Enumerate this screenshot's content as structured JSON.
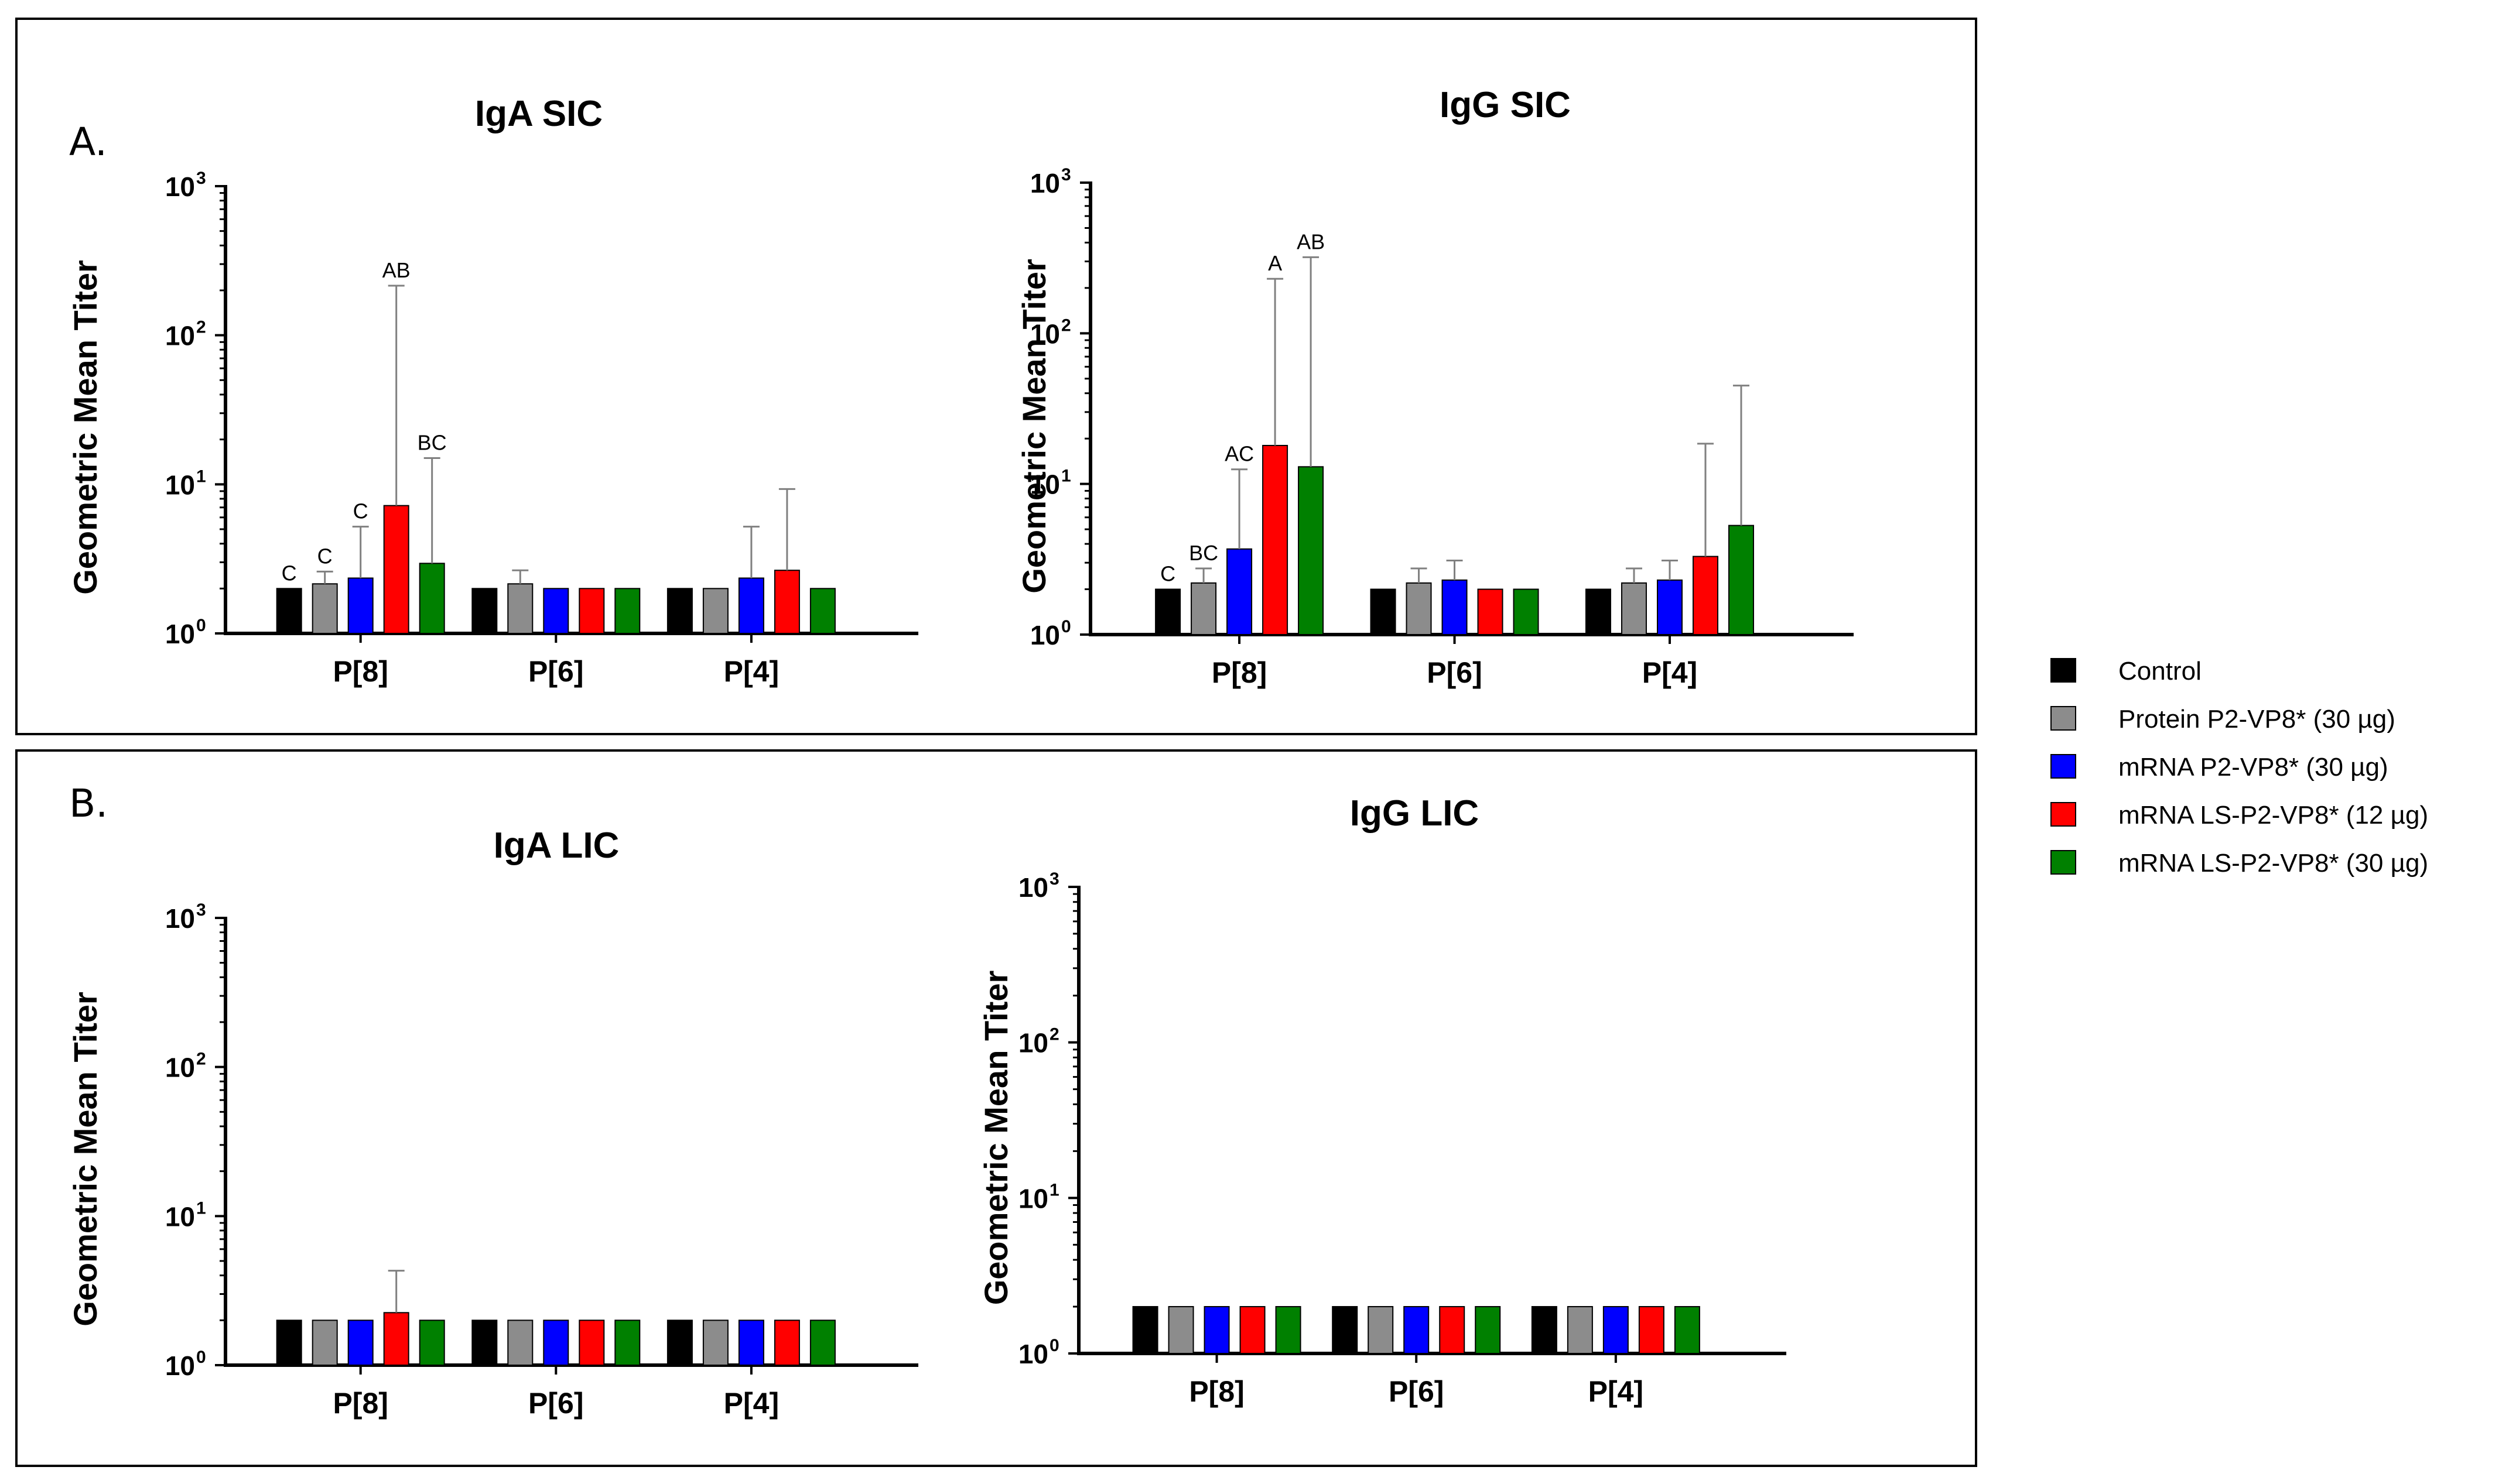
{
  "figure": {
    "panel_letters": [
      "A.",
      "B."
    ],
    "legend": [
      {
        "label": "Control",
        "color": "#000000"
      },
      {
        "label": "Protein P2-VP8* (30 µg)",
        "color": "#8c8c8c"
      },
      {
        "label": "mRNA P2-VP8* (30 µg)",
        "color": "#0000ff"
      },
      {
        "label": "mRNA LS-P2-VP8* (12 µg)",
        "color": "#ff0000"
      },
      {
        "label": "mRNA LS-P2-VP8* (30 µg)",
        "color": "#008000"
      }
    ]
  },
  "chart_data": [
    {
      "type": "bar",
      "title": "IgA SIC",
      "panel": "A.",
      "xlabel": "",
      "ylabel": "Geometric Mean Titer",
      "yscale": "log",
      "ylim": [
        1,
        1000
      ],
      "yticks": [
        {
          "base": "10",
          "exp": "0"
        },
        {
          "base": "10",
          "exp": "1"
        },
        {
          "base": "10",
          "exp": "2"
        },
        {
          "base": "10",
          "exp": "3"
        }
      ],
      "categories": [
        "P[8]",
        "P[6]",
        "P[4]"
      ],
      "series": [
        {
          "name": "Control",
          "values": [
            2.0,
            2.0,
            2.0
          ],
          "error_upper": [
            null,
            null,
            null
          ],
          "annotations": [
            "C",
            "",
            ""
          ]
        },
        {
          "name": "Protein P2-VP8* (30 µg)",
          "values": [
            2.15,
            2.15,
            2.0
          ],
          "error_upper": [
            2.6,
            2.65,
            null
          ],
          "annotations": [
            "C",
            "",
            ""
          ]
        },
        {
          "name": "mRNA P2-VP8* (30 µg)",
          "values": [
            2.35,
            2.0,
            2.35
          ],
          "error_upper": [
            5.2,
            null,
            5.2
          ],
          "annotations": [
            "C",
            "",
            ""
          ]
        },
        {
          "name": "mRNA LS-P2-VP8* (12 µg)",
          "values": [
            7.2,
            2.0,
            2.65
          ],
          "error_upper": [
            215,
            null,
            9.3
          ],
          "annotations": [
            "AB",
            "",
            ""
          ]
        },
        {
          "name": "mRNA LS-P2-VP8* (30 µg)",
          "values": [
            2.95,
            2.0,
            2.0
          ],
          "error_upper": [
            15,
            null,
            null
          ],
          "annotations": [
            "BC",
            "",
            ""
          ]
        }
      ]
    },
    {
      "type": "bar",
      "title": "IgG SIC",
      "panel": "A.",
      "xlabel": "",
      "ylabel": "Geometric Mean Titer",
      "yscale": "log",
      "ylim": [
        1,
        1000
      ],
      "yticks": [
        {
          "base": "10",
          "exp": "0"
        },
        {
          "base": "10",
          "exp": "1"
        },
        {
          "base": "10",
          "exp": "2"
        },
        {
          "base": "10",
          "exp": "3"
        }
      ],
      "categories": [
        "P[8]",
        "P[6]",
        "P[4]"
      ],
      "series": [
        {
          "name": "Control",
          "values": [
            2.0,
            2.0,
            2.0
          ],
          "error_upper": [
            null,
            null,
            null
          ],
          "annotations": [
            "C",
            "",
            ""
          ]
        },
        {
          "name": "Protein P2-VP8* (30 µg)",
          "values": [
            2.2,
            2.2,
            2.2
          ],
          "error_upper": [
            2.75,
            2.75,
            2.75
          ],
          "annotations": [
            "BC",
            "",
            ""
          ]
        },
        {
          "name": "mRNA P2-VP8* (30 µg)",
          "values": [
            3.7,
            2.3,
            2.3
          ],
          "error_upper": [
            12.5,
            3.1,
            3.1
          ],
          "annotations": [
            "AC",
            "",
            ""
          ]
        },
        {
          "name": "mRNA LS-P2-VP8* (12 µg)",
          "values": [
            18,
            2.0,
            3.3
          ],
          "error_upper": [
            230,
            null,
            18.5
          ],
          "annotations": [
            "A",
            "",
            ""
          ]
        },
        {
          "name": "mRNA LS-P2-VP8* (30 µg)",
          "values": [
            13,
            2.0,
            5.3
          ],
          "error_upper": [
            320,
            null,
            45
          ],
          "annotations": [
            "AB",
            "",
            ""
          ]
        }
      ]
    },
    {
      "type": "bar",
      "title": "IgA LIC",
      "panel": "B.",
      "xlabel": "",
      "ylabel": "Geometric Mean Titer",
      "yscale": "log",
      "ylim": [
        1,
        1000
      ],
      "yticks": [
        {
          "base": "10",
          "exp": "0"
        },
        {
          "base": "10",
          "exp": "1"
        },
        {
          "base": "10",
          "exp": "2"
        },
        {
          "base": "10",
          "exp": "3"
        }
      ],
      "categories": [
        "P[8]",
        "P[6]",
        "P[4]"
      ],
      "series": [
        {
          "name": "Control",
          "values": [
            2.0,
            2.0,
            2.0
          ],
          "error_upper": [
            null,
            null,
            null
          ],
          "annotations": [
            "",
            "",
            ""
          ]
        },
        {
          "name": "Protein P2-VP8* (30 µg)",
          "values": [
            2.0,
            2.0,
            2.0
          ],
          "error_upper": [
            null,
            null,
            null
          ],
          "annotations": [
            "",
            "",
            ""
          ]
        },
        {
          "name": "mRNA P2-VP8* (30 µg)",
          "values": [
            2.0,
            2.0,
            2.0
          ],
          "error_upper": [
            null,
            null,
            null
          ],
          "annotations": [
            "",
            "",
            ""
          ]
        },
        {
          "name": "mRNA LS-P2-VP8* (12 µg)",
          "values": [
            2.25,
            2.0,
            2.0
          ],
          "error_upper": [
            4.3,
            null,
            null
          ],
          "annotations": [
            "",
            "",
            ""
          ]
        },
        {
          "name": "mRNA LS-P2-VP8* (30 µg)",
          "values": [
            2.0,
            2.0,
            2.0
          ],
          "error_upper": [
            null,
            null,
            null
          ],
          "annotations": [
            "",
            "",
            ""
          ]
        }
      ]
    },
    {
      "type": "bar",
      "title": "IgG LIC",
      "panel": "B.",
      "xlabel": "",
      "ylabel": "Geometric Mean Titer",
      "yscale": "log",
      "ylim": [
        1,
        1000
      ],
      "yticks": [
        {
          "base": "10",
          "exp": "0"
        },
        {
          "base": "10",
          "exp": "1"
        },
        {
          "base": "10",
          "exp": "2"
        },
        {
          "base": "10",
          "exp": "3"
        }
      ],
      "categories": [
        "P[8]",
        "P[6]",
        "P[4]"
      ],
      "series": [
        {
          "name": "Control",
          "values": [
            2.0,
            2.0,
            2.0
          ],
          "error_upper": [
            null,
            null,
            null
          ],
          "annotations": [
            "",
            "",
            ""
          ]
        },
        {
          "name": "Protein P2-VP8* (30 µg)",
          "values": [
            2.0,
            2.0,
            2.0
          ],
          "error_upper": [
            null,
            null,
            null
          ],
          "annotations": [
            "",
            "",
            ""
          ]
        },
        {
          "name": "mRNA P2-VP8* (30 µg)",
          "values": [
            2.0,
            2.0,
            2.0
          ],
          "error_upper": [
            null,
            null,
            null
          ],
          "annotations": [
            "",
            "",
            ""
          ]
        },
        {
          "name": "mRNA LS-P2-VP8* (12 µg)",
          "values": [
            2.0,
            2.0,
            2.0
          ],
          "error_upper": [
            null,
            null,
            null
          ],
          "annotations": [
            "",
            "",
            ""
          ]
        },
        {
          "name": "mRNA LS-P2-VP8* (30 µg)",
          "values": [
            2.0,
            2.0,
            2.0
          ],
          "error_upper": [
            null,
            null,
            null
          ],
          "annotations": [
            "",
            "",
            ""
          ]
        }
      ]
    }
  ]
}
